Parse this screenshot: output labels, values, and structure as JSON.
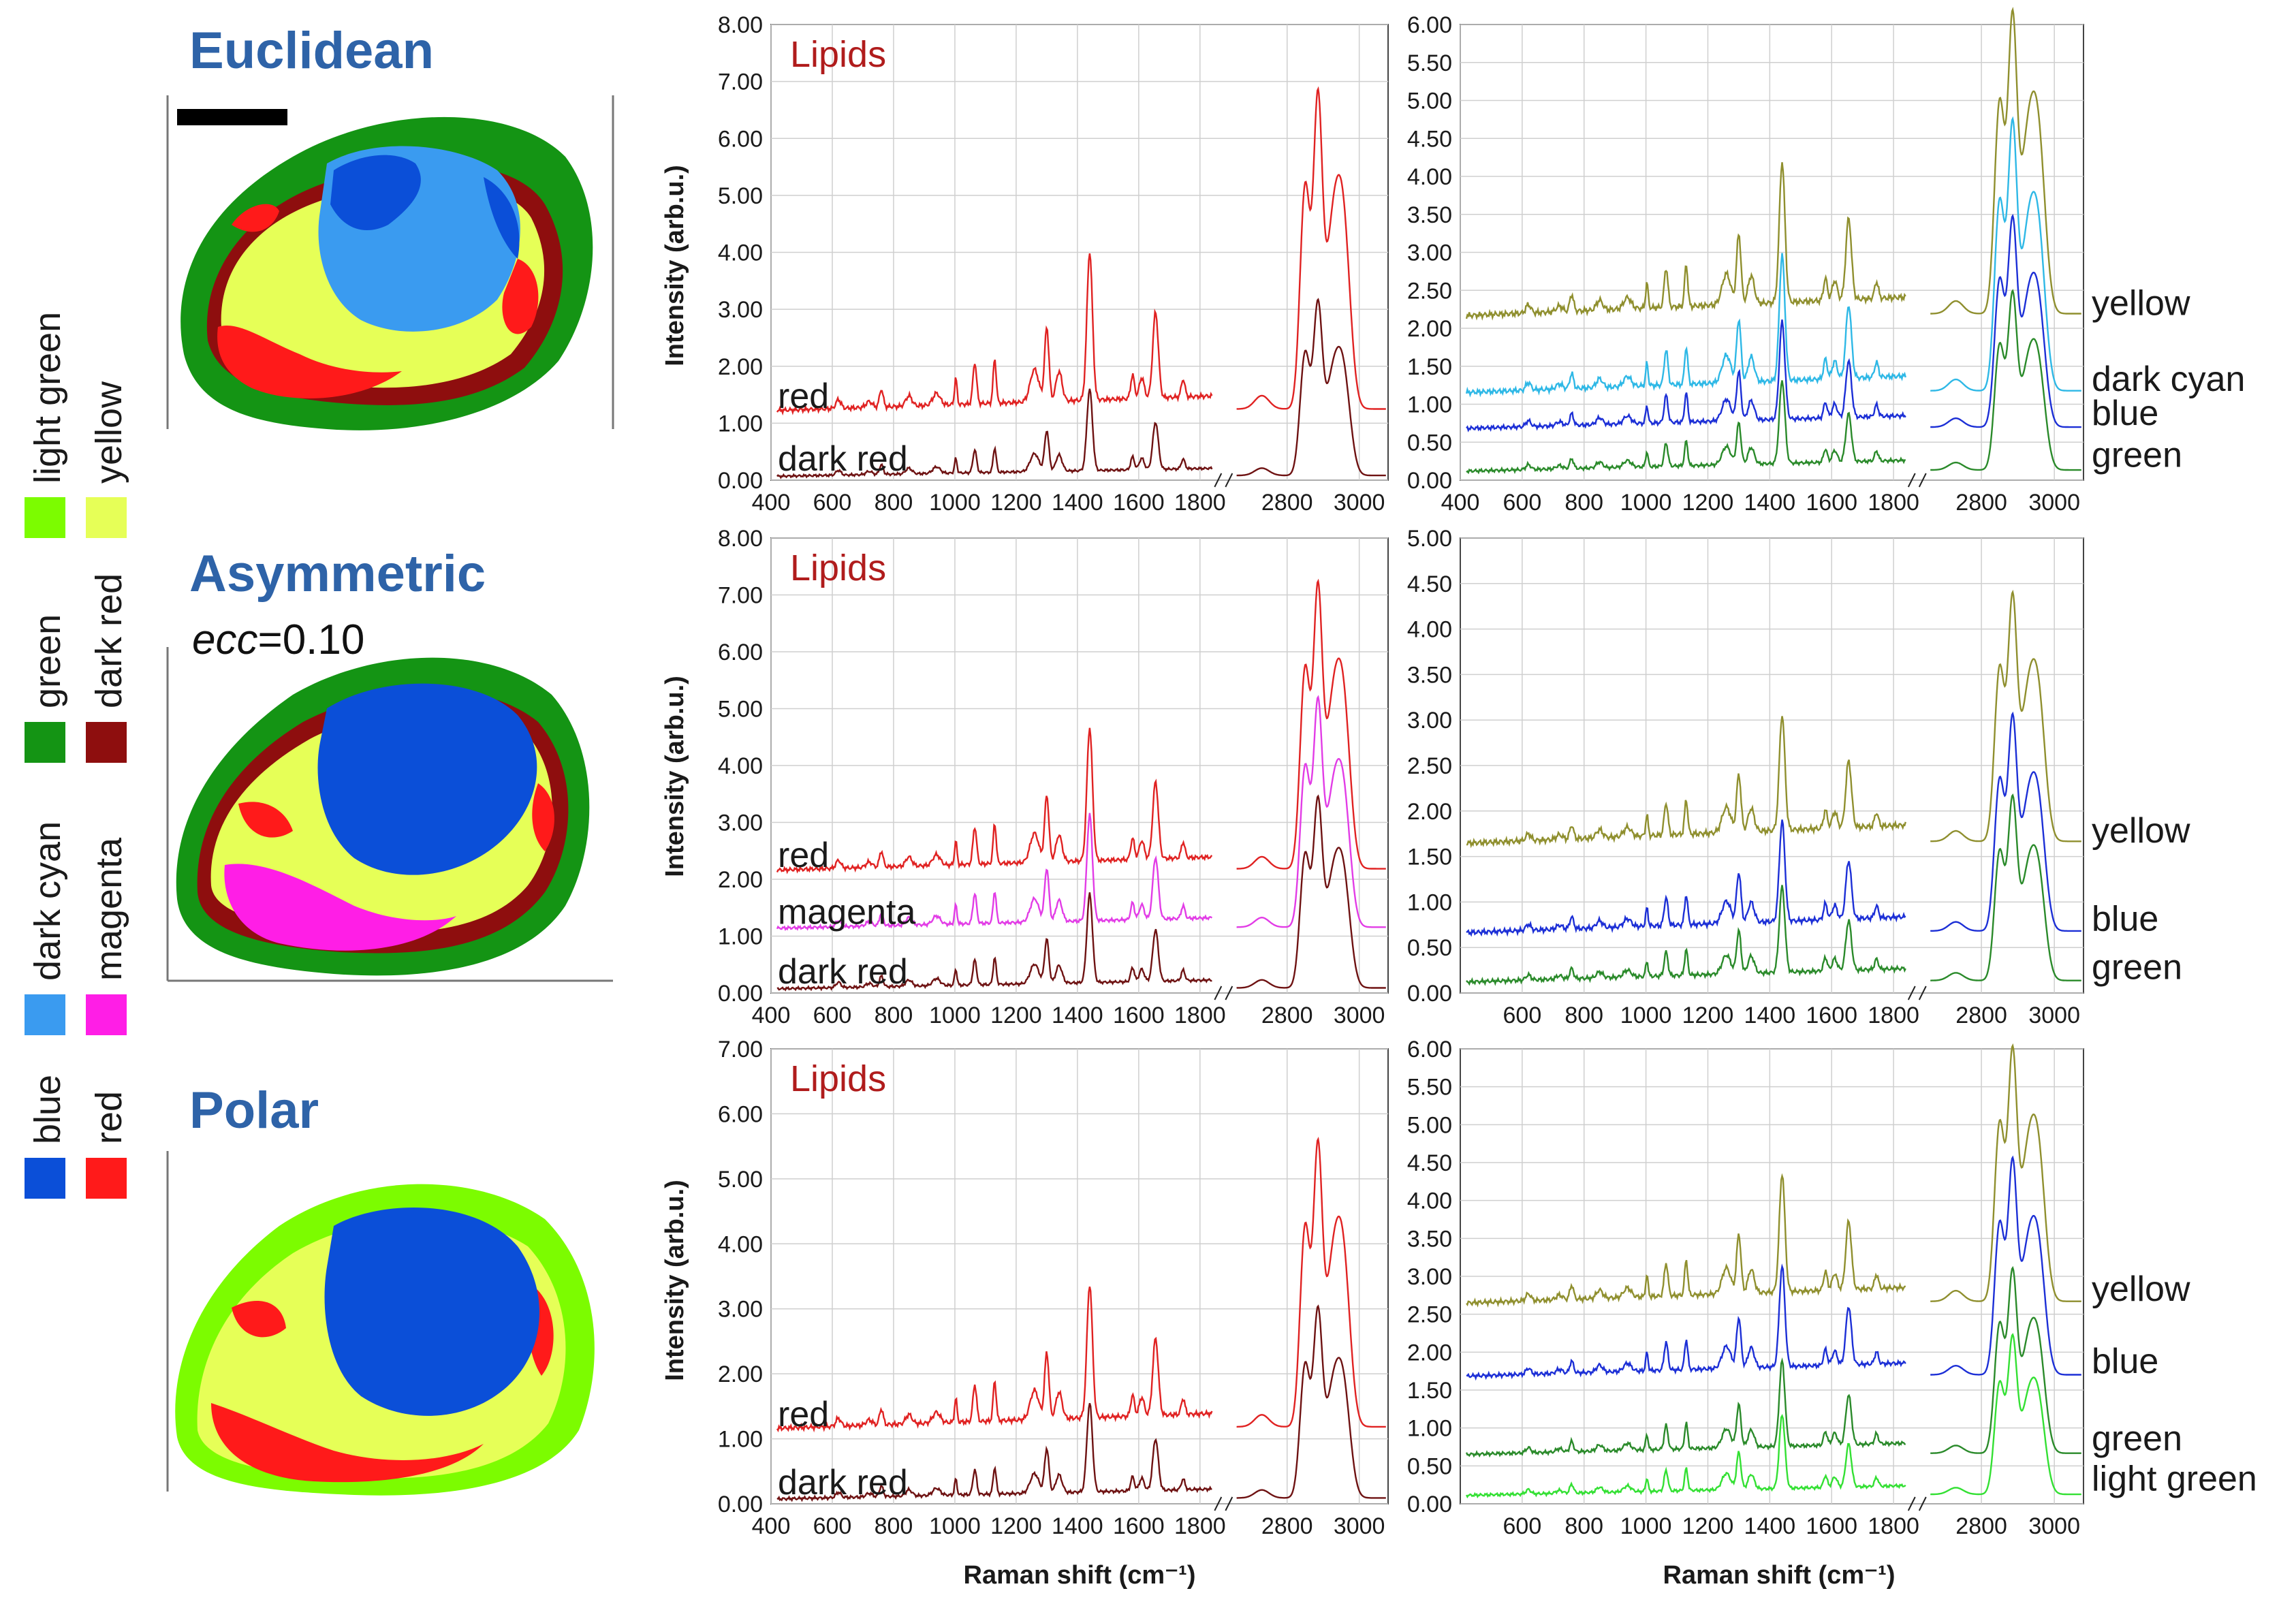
{
  "legend": {
    "items": [
      {
        "name": "light green",
        "color": "#7cfc00"
      },
      {
        "name": "yellow",
        "color": "#e6ff57"
      },
      {
        "name": "green",
        "color": "#149414"
      },
      {
        "name": "dark red",
        "color": "#8e0e0e"
      },
      {
        "name": "dark cyan",
        "color": "#3a9bf0"
      },
      {
        "name": "magenta",
        "color": "#ff1ee6"
      },
      {
        "name": "blue",
        "color": "#0b4fd8"
      },
      {
        "name": "red",
        "color": "#ff1a1a"
      }
    ]
  },
  "maps": [
    {
      "title": "Euclidean",
      "subtitle_var": "",
      "subtitle_val": ""
    },
    {
      "title": "Asymmetric",
      "subtitle_var": "ecc",
      "subtitle_val": "=0.10"
    },
    {
      "title": "Polar",
      "subtitle_var": "",
      "subtitle_val": ""
    }
  ],
  "axis_titles": {
    "x": "Raman shift (cm⁻¹)",
    "y": "Intensity (arb.u.)"
  },
  "lipids_label": "Lipids",
  "colors": {
    "red": "#e02222",
    "dark red": "#6e1212",
    "magenta": "#e23ce6",
    "yellow": "#8f8f2e",
    "dark cyan": "#2eb8e6",
    "blue": "#1c2fd6",
    "green": "#2a8a2a",
    "light green": "#33e033"
  },
  "chart_data": [
    {
      "type": "line",
      "panel": "Euclidean lipids",
      "title": "Lipids",
      "ylabel": "Intensity (arb.u.)",
      "xlabel": "",
      "x_ticks_left": [
        "400",
        "600",
        "800",
        "1000",
        "1200",
        "1400",
        "1600",
        "1800"
      ],
      "x_ticks_right": [
        "2800",
        "3000"
      ],
      "ylim": [
        0,
        8
      ],
      "y_ticks": [
        "0.00",
        "1.00",
        "2.00",
        "3.00",
        "4.00",
        "5.00",
        "6.00",
        "7.00",
        "8.00"
      ],
      "series": [
        {
          "name": "red",
          "offset": 1.1,
          "scale": 1.0
        },
        {
          "name": "dark red",
          "offset": 0.0,
          "scale": 0.55
        }
      ]
    },
    {
      "type": "line",
      "panel": "Euclidean other",
      "title": "",
      "ylabel": "",
      "xlabel": "",
      "x_ticks_left": [
        "400",
        "600",
        "800",
        "1000",
        "1200",
        "1400",
        "1600",
        "1800"
      ],
      "x_ticks_right": [
        "2800",
        "3000"
      ],
      "ylim": [
        0,
        6
      ],
      "y_ticks": [
        "0.00",
        "0.50",
        "1.00",
        "1.50",
        "2.00",
        "2.50",
        "3.00",
        "3.50",
        "4.00",
        "4.50",
        "5.00",
        "5.50",
        "6.00"
      ],
      "series": [
        {
          "name": "yellow",
          "offset": 2.05,
          "scale": 0.95
        },
        {
          "name": "dark cyan",
          "offset": 1.05,
          "scale": 0.85
        },
        {
          "name": "blue",
          "offset": 0.6,
          "scale": 0.66
        },
        {
          "name": "green",
          "offset": 0.05,
          "scale": 0.56
        }
      ]
    },
    {
      "type": "line",
      "panel": "Asymmetric lipids",
      "title": "Lipids",
      "ylabel": "Intensity (arb.u.)",
      "xlabel": "",
      "x_ticks_left": [
        "400",
        "600",
        "800",
        "1000",
        "1200",
        "1400",
        "1600",
        "1800"
      ],
      "x_ticks_right": [
        "2800",
        "3000"
      ],
      "ylim": [
        0,
        8
      ],
      "y_ticks": [
        "0.00",
        "1.00",
        "2.00",
        "3.00",
        "4.00",
        "5.00",
        "6.00",
        "7.00",
        "8.00"
      ],
      "series": [
        {
          "name": "red",
          "offset": 2.05,
          "scale": 0.9
        },
        {
          "name": "magenta",
          "offset": 1.05,
          "scale": 0.72
        },
        {
          "name": "dark red",
          "offset": 0.0,
          "scale": 0.6
        }
      ]
    },
    {
      "type": "line",
      "panel": "Asymmetric other",
      "title": "",
      "ylabel": "",
      "xlabel": "",
      "x_ticks_left": [
        "600",
        "800",
        "1000",
        "1200",
        "1400",
        "1600",
        "1800"
      ],
      "x_ticks_right": [
        "2800",
        "3000"
      ],
      "ylim": [
        0,
        5
      ],
      "y_ticks": [
        "0.00",
        "0.50",
        "1.00",
        "1.50",
        "2.00",
        "2.50",
        "3.00",
        "3.50",
        "4.00",
        "4.50",
        "5.00"
      ],
      "series": [
        {
          "name": "yellow",
          "offset": 1.55,
          "scale": 0.78
        },
        {
          "name": "blue",
          "offset": 0.58,
          "scale": 0.68
        },
        {
          "name": "green",
          "offset": 0.05,
          "scale": 0.58
        }
      ]
    },
    {
      "type": "line",
      "panel": "Polar lipids",
      "title": "Lipids",
      "ylabel": "Intensity (arb.u.)",
      "xlabel": "Raman shift (cm⁻¹)",
      "x_ticks_left": [
        "400",
        "600",
        "800",
        "1000",
        "1200",
        "1400",
        "1600",
        "1800"
      ],
      "x_ticks_right": [
        "2800",
        "3000"
      ],
      "ylim": [
        0,
        7
      ],
      "y_ticks": [
        "0.00",
        "1.00",
        "2.00",
        "3.00",
        "4.00",
        "5.00",
        "6.00",
        "7.00"
      ],
      "series": [
        {
          "name": "red",
          "offset": 1.05,
          "scale": 0.9
        },
        {
          "name": "dark red",
          "offset": 0.0,
          "scale": 0.6
        }
      ]
    },
    {
      "type": "line",
      "panel": "Polar other",
      "title": "",
      "ylabel": "",
      "xlabel": "Raman shift (cm⁻¹)",
      "x_ticks_left": [
        "600",
        "800",
        "1000",
        "1200",
        "1400",
        "1600",
        "1800"
      ],
      "x_ticks_right": [
        "2800",
        "3000"
      ],
      "ylim": [
        0,
        6
      ],
      "y_ticks": [
        "0.00",
        "0.50",
        "1.00",
        "1.50",
        "2.00",
        "2.50",
        "3.00",
        "3.50",
        "4.00",
        "4.50",
        "5.00",
        "5.50",
        "6.00"
      ],
      "series": [
        {
          "name": "yellow",
          "offset": 2.55,
          "scale": 0.8
        },
        {
          "name": "blue",
          "offset": 1.6,
          "scale": 0.68
        },
        {
          "name": "green",
          "offset": 0.58,
          "scale": 0.58
        },
        {
          "name": "light green",
          "offset": 0.05,
          "scale": 0.5
        }
      ]
    }
  ]
}
